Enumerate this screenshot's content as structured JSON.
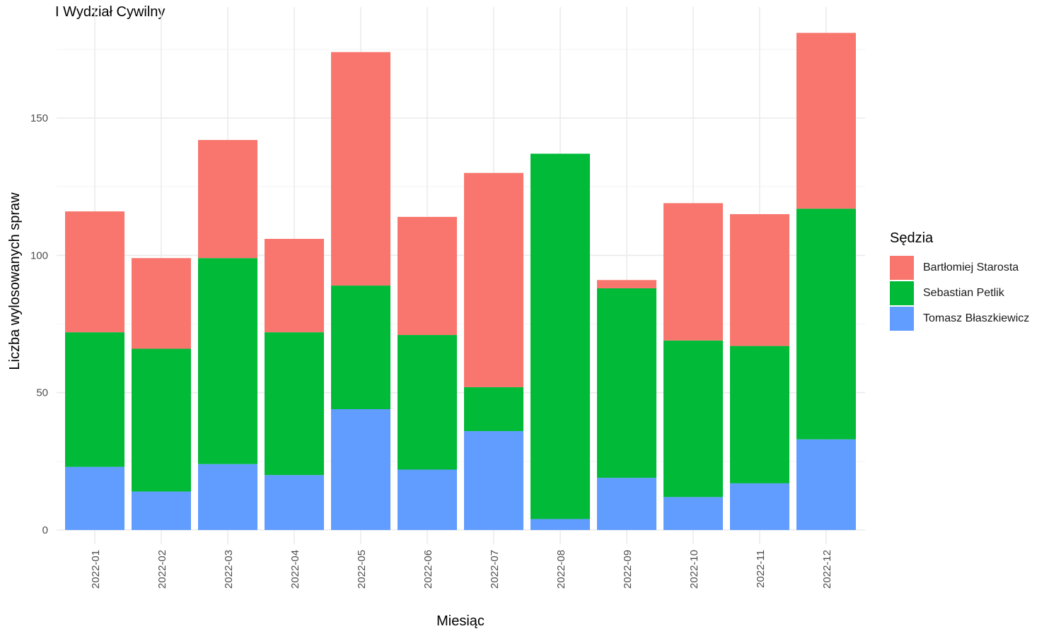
{
  "chart_data": {
    "type": "bar",
    "stacked": true,
    "title": "I Wydział Cywilny",
    "xlabel": "Miesiąc",
    "ylabel": "Liczba wylosowanych spraw",
    "ylim": [
      0,
      186
    ],
    "yticks": [
      0,
      50,
      100,
      150
    ],
    "grid": true,
    "legend_position": "right",
    "legend_title": "Sędzia",
    "categories": [
      "2022-01",
      "2022-02",
      "2022-03",
      "2022-04",
      "2022-05",
      "2022-06",
      "2022-07",
      "2022-08",
      "2022-09",
      "2022-10",
      "2022-11",
      "2022-12"
    ],
    "series": [
      {
        "name": "Bartłomiej Starosta",
        "color": "#F8766D",
        "values": [
          44,
          33,
          43,
          34,
          85,
          43,
          78,
          0,
          3,
          50,
          48,
          64
        ]
      },
      {
        "name": "Sebastian Petlik",
        "color": "#00BA38",
        "values": [
          49,
          52,
          75,
          52,
          45,
          49,
          16,
          133,
          69,
          57,
          50,
          84
        ]
      },
      {
        "name": "Tomasz Błaszkiewicz",
        "color": "#619CFF",
        "values": [
          23,
          14,
          24,
          20,
          44,
          22,
          36,
          4,
          19,
          12,
          17,
          33
        ]
      }
    ]
  }
}
